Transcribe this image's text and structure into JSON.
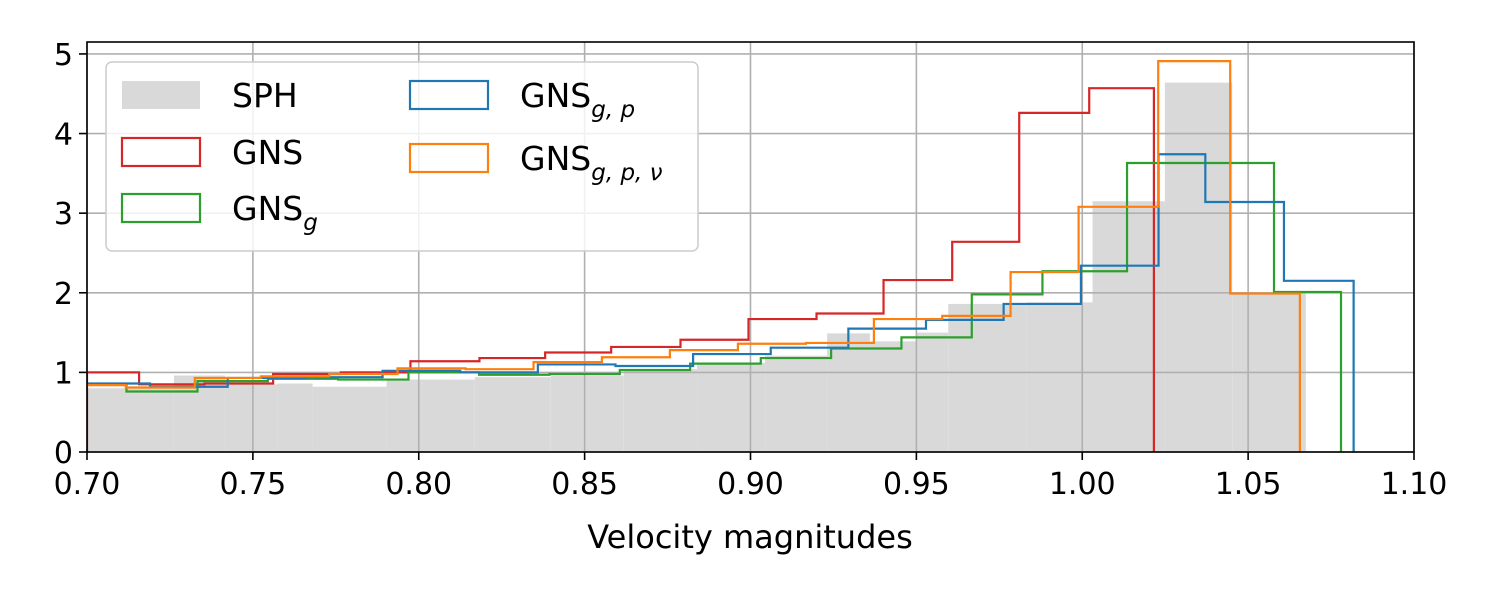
{
  "chart_data": {
    "type": "histogram-step",
    "title": "",
    "xlabel": "Velocity magnitudes",
    "ylabel": "",
    "xlim": [
      0.7,
      1.1
    ],
    "ylim": [
      0,
      5.15
    ],
    "x_ticks": [
      "0.70",
      "0.75",
      "0.80",
      "0.85",
      "0.90",
      "0.95",
      "1.00",
      "1.05",
      "1.10"
    ],
    "y_ticks": [
      "0",
      "1",
      "2",
      "3",
      "4",
      "5"
    ],
    "grid": true,
    "legend_placement": "top-left",
    "series": [
      {
        "name": "SPH",
        "sub": "",
        "style": "filled",
        "color": "#d9d9d9",
        "edges": [
          0.6925,
          0.7262,
          0.7417,
          0.7573,
          0.768,
          0.7903,
          0.8169,
          0.8398,
          0.8618,
          0.8839,
          0.9044,
          0.9231,
          0.936,
          0.9499,
          0.9596,
          0.9833,
          1.0031,
          1.0249,
          1.0452,
          1.0674
        ],
        "values": [
          0.8,
          0.96,
          0.85,
          0.86,
          0.82,
          0.91,
          0.94,
          0.96,
          1.04,
          1.12,
          1.21,
          1.49,
          1.39,
          1.5,
          1.86,
          1.88,
          3.15,
          4.64,
          2.0
        ]
      },
      {
        "name": "GNS",
        "sub": "",
        "style": "step",
        "color": "#d62728",
        "edges": [
          0.7,
          0.7157,
          0.7354,
          0.7561,
          0.7765,
          0.7975,
          0.8183,
          0.8381,
          0.858,
          0.8789,
          0.8994,
          0.9199,
          0.9401,
          0.9608,
          0.981,
          1.0021,
          1.0216
        ],
        "values": [
          1.0,
          0.85,
          0.86,
          0.98,
          1.0,
          1.14,
          1.18,
          1.25,
          1.32,
          1.41,
          1.67,
          1.74,
          2.16,
          2.64,
          4.26,
          4.57
        ]
      },
      {
        "name": "GNS",
        "sub": "g",
        "style": "step",
        "color": "#2ca02c",
        "edges": [
          0.6925,
          0.7119,
          0.7333,
          0.7545,
          0.7757,
          0.7969,
          0.8182,
          0.8394,
          0.8606,
          0.8818,
          0.9031,
          0.9243,
          0.9455,
          0.9667,
          0.988,
          1.0135,
          1.0578,
          1.078
        ],
        "values": [
          0.85,
          0.76,
          0.89,
          0.92,
          0.91,
          1.0,
          0.97,
          0.98,
          1.03,
          1.11,
          1.18,
          1.3,
          1.44,
          1.98,
          2.27,
          3.63,
          2.01
        ]
      },
      {
        "name": "GNS",
        "sub": "g, p",
        "style": "step",
        "color": "#1f77b4",
        "edges": [
          0.6925,
          0.719,
          0.7424,
          0.7658,
          0.7891,
          0.8125,
          0.8359,
          0.8593,
          0.8827,
          0.9061,
          0.9295,
          0.9529,
          0.9763,
          0.9996,
          1.023,
          1.0371,
          1.0608,
          1.0818
        ],
        "values": [
          0.86,
          0.82,
          0.93,
          0.94,
          1.02,
          1.0,
          1.1,
          1.08,
          1.23,
          1.31,
          1.55,
          1.66,
          1.86,
          2.34,
          3.74,
          3.14,
          2.15
        ]
      },
      {
        "name": "GNS",
        "sub": "g, p, ν",
        "style": "step",
        "color": "#ff7f0e",
        "edges": [
          0.6925,
          0.7117,
          0.7325,
          0.7524,
          0.773,
          0.7936,
          0.8141,
          0.8346,
          0.8552,
          0.8757,
          0.8962,
          0.9167,
          0.9372,
          0.9578,
          0.9784,
          0.9989,
          1.0229,
          1.0446,
          1.0656
        ],
        "values": [
          0.84,
          0.81,
          0.93,
          0.95,
          0.98,
          1.05,
          1.04,
          1.13,
          1.19,
          1.28,
          1.36,
          1.37,
          1.67,
          1.71,
          2.26,
          3.08,
          4.91,
          1.99
        ]
      }
    ]
  }
}
